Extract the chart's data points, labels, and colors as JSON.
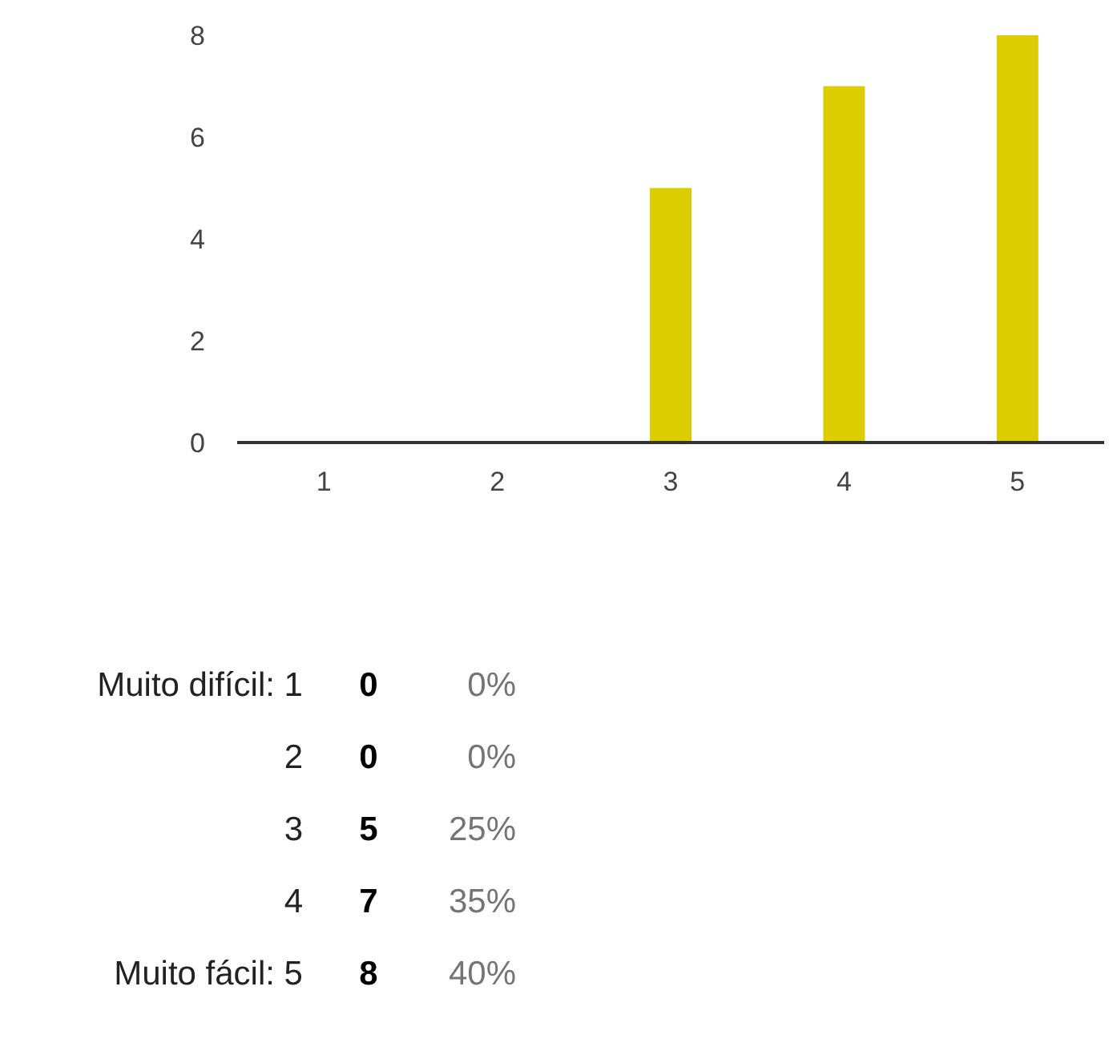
{
  "chart_data": {
    "type": "bar",
    "categories": [
      "1",
      "2",
      "3",
      "4",
      "5"
    ],
    "values": [
      0,
      0,
      5,
      7,
      8
    ],
    "color": "#dccd00",
    "ylim": [
      0,
      8
    ],
    "yticks": [
      0,
      2,
      4,
      6,
      8
    ],
    "grid": false,
    "legend": false,
    "annotations": [
      "Muito difícil: 1",
      "0",
      "0%",
      "2",
      "0",
      "0%",
      "3",
      "5",
      "25%",
      "4",
      "7",
      "35%",
      "Muito fácil: 5",
      "8",
      "40%"
    ]
  }
}
